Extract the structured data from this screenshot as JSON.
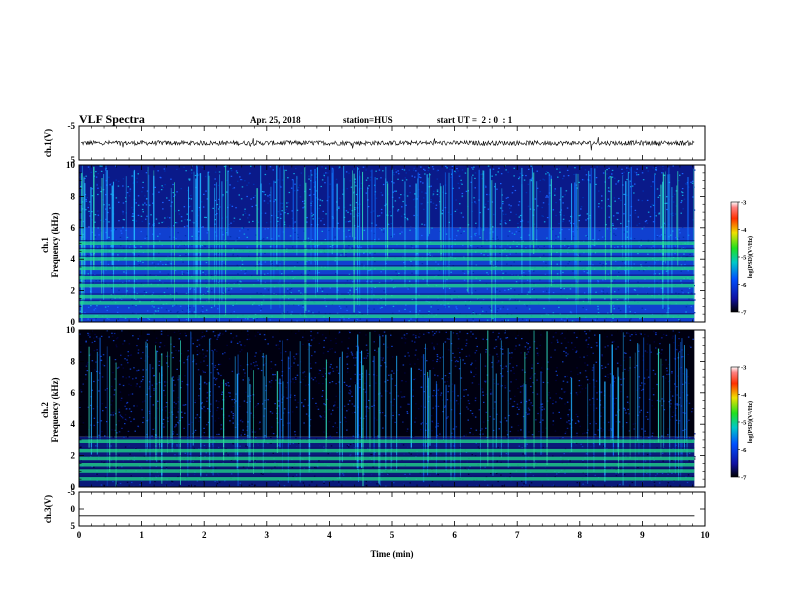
{
  "header": {
    "title": "VLF Spectra",
    "date": "Apr. 25, 2018",
    "station": "station=HUS",
    "start": "start UT =  2 : 0  : 1"
  },
  "chart_data": [
    {
      "type": "line",
      "name": "ch1-waveform",
      "ylabel": "ch.1(V)",
      "ylim": [
        -5,
        5
      ],
      "yticks": [
        "5",
        "-5"
      ],
      "xlim": [
        0,
        10
      ],
      "x": [
        0,
        0.5,
        1,
        1.5,
        2,
        2.5,
        3,
        3.5,
        4,
        4.5,
        5,
        5.5,
        6,
        6.5,
        7,
        7.5,
        8,
        8.5,
        9,
        9.5,
        9.83
      ],
      "y": [
        0,
        0.2,
        -0.1,
        0.1,
        0,
        -0.2,
        0.1,
        0,
        -0.1,
        0.2,
        0,
        0.1,
        -0.1,
        0,
        0.2,
        -0.1,
        0,
        0.1,
        -0.2,
        0,
        0
      ]
    },
    {
      "type": "heatmap",
      "name": "ch1-spectrogram",
      "ylabel": "ch.1\nFrequency (kHz)",
      "ylim": [
        0,
        10
      ],
      "yticks": [
        "0",
        "2",
        "4",
        "6",
        "8",
        "10"
      ],
      "xlim": [
        0,
        10
      ],
      "data_end_min": 9.83,
      "background_above_khz": 6.0,
      "colorbar": {
        "label": "log(PSD)(V²/Hz)",
        "range": [
          -7,
          -3
        ],
        "ticks": [
          "-3",
          "-4",
          "-5",
          "-6",
          "-7"
        ]
      },
      "bands_khz": [
        0.35,
        1.2,
        1.6,
        2.3,
        2.8,
        3.4,
        4.0,
        4.5,
        5.0
      ],
      "band_color": "#22dd88"
    },
    {
      "type": "heatmap",
      "name": "ch2-spectrogram",
      "ylabel": "ch.2\nFrequency (kHz)",
      "ylim": [
        0,
        10
      ],
      "yticks": [
        "0",
        "2",
        "4",
        "6",
        "8",
        "10"
      ],
      "xlim": [
        0,
        10
      ],
      "data_end_min": 9.83,
      "background_above_khz": 3.2,
      "colorbar": {
        "label": "log(PSD)(V²/Hz)",
        "range": [
          -7,
          -3
        ],
        "ticks": [
          "-3",
          "-4",
          "-5",
          "-6",
          "-7"
        ]
      },
      "bands_khz": [
        0.5,
        1.0,
        1.4,
        1.8,
        2.3,
        2.9
      ],
      "band_color": "#22dd88"
    },
    {
      "type": "line",
      "name": "ch3-waveform",
      "ylabel": "ch.3(V)",
      "ylim": [
        -5,
        5
      ],
      "yticks": [
        "5",
        "0",
        "-5"
      ],
      "xlim": [
        0,
        10
      ],
      "x": [
        0,
        9.83
      ],
      "y": [
        -2,
        -2
      ],
      "xlabel": "Time (min)",
      "xticks": [
        "0",
        "1",
        "2",
        "3",
        "4",
        "5",
        "6",
        "7",
        "8",
        "9",
        "10"
      ]
    }
  ]
}
